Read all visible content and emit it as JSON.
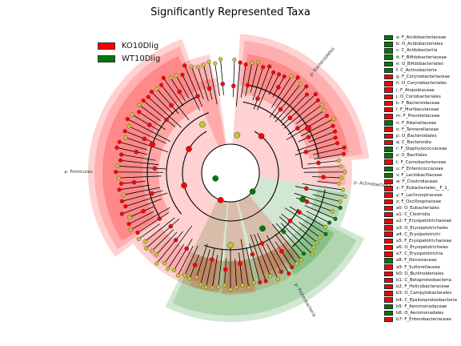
{
  "colors": {
    "KO10Dlig": "#ff0000",
    "WT10Dlig": "#007a00"
  },
  "chart_data": {
    "type": "cladogram",
    "title": "Significantly Represented Taxa",
    "groups": [
      {
        "name": "KO10Dlig",
        "color": "#ff0000"
      },
      {
        "name": "WT10Dlig",
        "color": "#007a00"
      }
    ],
    "legend_placement": "right",
    "group_legend_placement": "top-left",
    "arc_labels": [
      {
        "label": "p: Bacteroidetes",
        "group": "KO10Dlig"
      },
      {
        "label": "p: Firmicutes",
        "group": "KO10Dlig"
      },
      {
        "label": "p: Actinobacteria",
        "group": "WT10Dlig"
      },
      {
        "label": "p: Proteobacteria",
        "group": "WT10Dlig"
      }
    ],
    "taxa": [
      {
        "key": "a",
        "label": "a: F_Acidobacteriaceae",
        "group": "WT10Dlig"
      },
      {
        "key": "b",
        "label": "b: O_Acidobacteriales",
        "group": "WT10Dlig"
      },
      {
        "key": "c",
        "label": "c: C_Acidobacteriia",
        "group": "WT10Dlig"
      },
      {
        "key": "d",
        "label": "d: F_Bifidobacteriaceae",
        "group": "WT10Dlig"
      },
      {
        "key": "e",
        "label": "e: O_Bifidobacteriales",
        "group": "WT10Dlig"
      },
      {
        "key": "f",
        "label": "f: C_Actinobacteria",
        "group": "WT10Dlig"
      },
      {
        "key": "g",
        "label": "g: F_Corynebacteriaceae",
        "group": "KO10Dlig"
      },
      {
        "key": "h",
        "label": "h: O_Corynebacteriales",
        "group": "KO10Dlig"
      },
      {
        "key": "i",
        "label": "i: F_Atopobiaceae",
        "group": "KO10Dlig"
      },
      {
        "key": "j",
        "label": "j: O_Coriobacteriales",
        "group": "KO10Dlig"
      },
      {
        "key": "k",
        "label": "k: F_Bacteroidaceae",
        "group": "KO10Dlig"
      },
      {
        "key": "l",
        "label": "l: F_Muribaculaceae",
        "group": "KO10Dlig"
      },
      {
        "key": "m",
        "label": "m: F_Prevotellaceae",
        "group": "KO10Dlig"
      },
      {
        "key": "n",
        "label": "n: F_Rikenellaceae",
        "group": "WT10Dlig"
      },
      {
        "key": "o",
        "label": "o: F_Tannerellaceae",
        "group": "KO10Dlig"
      },
      {
        "key": "p",
        "label": "p: O_Bacteroidales",
        "group": "KO10Dlig"
      },
      {
        "key": "q",
        "label": "q: C_Bacteroidia",
        "group": "KO10Dlig"
      },
      {
        "key": "r",
        "label": "r: F_Staphylococcaceae",
        "group": "WT10Dlig"
      },
      {
        "key": "s",
        "label": "s: O_Bacillales",
        "group": "WT10Dlig"
      },
      {
        "key": "t",
        "label": "t: F_Carnobacteriaceae",
        "group": "KO10Dlig"
      },
      {
        "key": "u",
        "label": "u: F_Enterococcaceae",
        "group": "WT10Dlig"
      },
      {
        "key": "v",
        "label": "v: F_Lactobacillaceae",
        "group": "WT10Dlig"
      },
      {
        "key": "w",
        "label": "w: F_Clostridiaceae",
        "group": "KO10Dlig"
      },
      {
        "key": "x",
        "label": "x: F_Eubacteriales__F_1_",
        "group": "KO10Dlig"
      },
      {
        "key": "y",
        "label": "y: F_Lachnospiraceae",
        "group": "KO10Dlig"
      },
      {
        "key": "z",
        "label": "z: F_Oscillospiraceae",
        "group": "KO10Dlig"
      },
      {
        "key": "a0",
        "label": "a0: O_Eubacteriales",
        "group": "KO10Dlig"
      },
      {
        "key": "a1",
        "label": "a1: C_Clostridia",
        "group": "KO10Dlig"
      },
      {
        "key": "a2",
        "label": "a2: F_Erysipelotrichaceae",
        "group": "KO10Dlig"
      },
      {
        "key": "a3",
        "label": "a3: O_Erysipelotrichales",
        "group": "KO10Dlig"
      },
      {
        "key": "a4",
        "label": "a4: C_Erysipelotrichi",
        "group": "KO10Dlig"
      },
      {
        "key": "a5",
        "label": "a5: F_Erysipelotrichaceae",
        "group": "KO10Dlig"
      },
      {
        "key": "a6",
        "label": "a6: O_Erysipelotrichales",
        "group": "KO10Dlig"
      },
      {
        "key": "a7",
        "label": "a7: C_Erysipelotrichia",
        "group": "KO10Dlig"
      },
      {
        "key": "a8",
        "label": "a8: F_Devosiaceae",
        "group": "WT10Dlig"
      },
      {
        "key": "a9",
        "label": "a9: F_Sutterellaceae",
        "group": "KO10Dlig"
      },
      {
        "key": "b0",
        "label": "b0: O_Burkholderiales",
        "group": "KO10Dlig"
      },
      {
        "key": "b1",
        "label": "b1: C_Betaproteobacteria",
        "group": "KO10Dlig"
      },
      {
        "key": "b2",
        "label": "b2: F_Helicobacteraceae",
        "group": "KO10Dlig"
      },
      {
        "key": "b3",
        "label": "b3: O_Campylobacterales",
        "group": "KO10Dlig"
      },
      {
        "key": "b4",
        "label": "b4: C_Epsilonproteobacteria",
        "group": "KO10Dlig"
      },
      {
        "key": "b5",
        "label": "b5: F_Aeromonadaceae",
        "group": "WT10Dlig"
      },
      {
        "key": "b6",
        "label": "b6: O_Aeromonadales",
        "group": "WT10Dlig"
      },
      {
        "key": "b7",
        "label": "b7: F_Enterobacteriaceae",
        "group": "KO10Dlig"
      }
    ]
  }
}
